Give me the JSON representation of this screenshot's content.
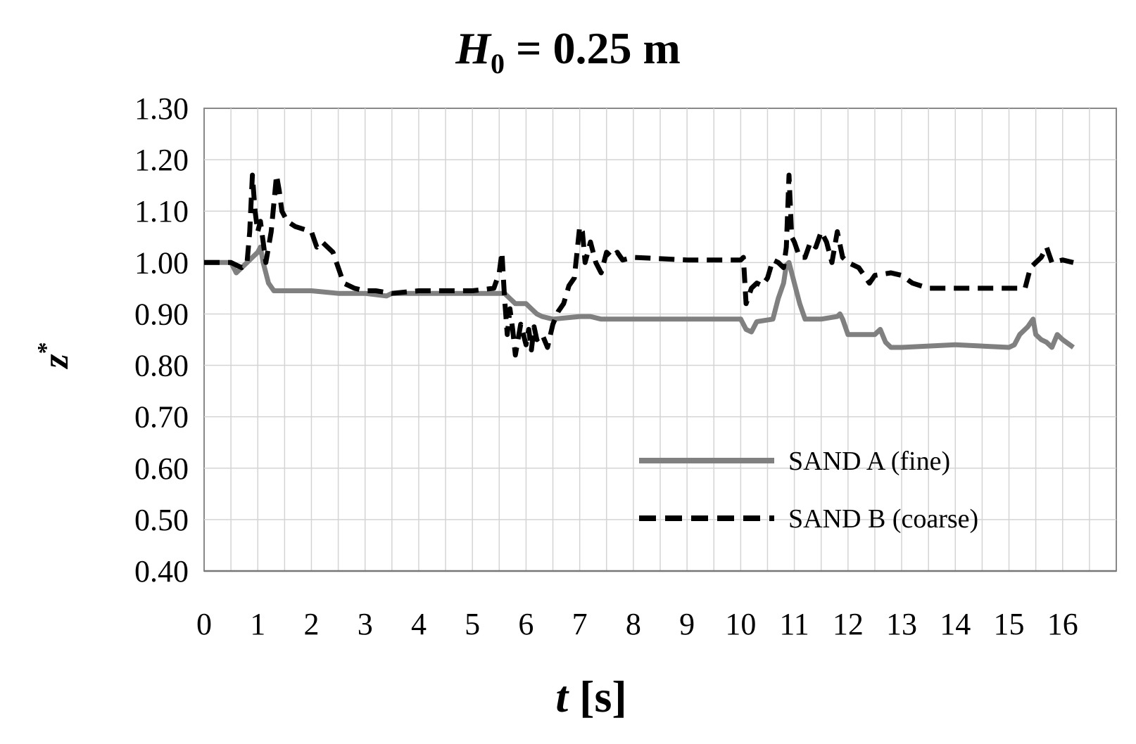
{
  "chart_data": {
    "type": "line",
    "title": {
      "italic": "H",
      "sub": "0",
      "rest": " = 0.25 m"
    },
    "xlabel": {
      "italic": "t",
      "rest": " [s]"
    },
    "ylabel": {
      "italic": "z",
      "sup": "*"
    },
    "xlim": [
      0,
      17
    ],
    "ylim": [
      0.4,
      1.3
    ],
    "x_ticks": [
      0,
      1,
      2,
      3,
      4,
      5,
      6,
      7,
      8,
      9,
      10,
      11,
      12,
      13,
      14,
      15,
      16
    ],
    "x_tick_labels": [
      "0",
      "1",
      "2",
      "3",
      "4",
      "5",
      "6",
      "7",
      "8",
      "9",
      "10",
      "11",
      "12",
      "13",
      "14",
      "15",
      "16"
    ],
    "y_ticks": [
      0.4,
      0.5,
      0.6,
      0.7,
      0.8,
      0.9,
      1.0,
      1.1,
      1.2,
      1.3
    ],
    "y_tick_labels": [
      "0.40",
      "0.50",
      "0.60",
      "0.70",
      "0.80",
      "0.90",
      "1.00",
      "1.10",
      "1.20",
      "1.30"
    ],
    "grid": true,
    "legend": "lower-right",
    "series": [
      {
        "name": "SAND A (fine)",
        "color": "#808080",
        "style": "solid",
        "x": [
          0,
          0.5,
          0.6,
          0.7,
          0.8,
          0.9,
          1.0,
          1.05,
          1.1,
          1.2,
          1.3,
          1.5,
          2.0,
          2.5,
          3.0,
          3.4,
          3.5,
          3.6,
          4.0,
          5.0,
          5.5,
          5.6,
          5.7,
          5.8,
          6.0,
          6.1,
          6.2,
          6.3,
          6.5,
          7.0,
          7.2,
          7.4,
          8.0,
          9.0,
          10.0,
          10.1,
          10.2,
          10.3,
          10.6,
          10.7,
          10.8,
          10.85,
          10.9,
          11.0,
          11.1,
          11.2,
          11.5,
          11.8,
          11.85,
          11.9,
          12.0,
          12.5,
          12.6,
          12.7,
          12.8,
          13.0,
          14.0,
          15.0,
          15.1,
          15.2,
          15.3,
          15.35,
          15.45,
          15.5,
          15.6,
          15.7,
          15.8,
          15.9,
          16.0,
          16.2
        ],
        "y": [
          1.0,
          1.0,
          0.98,
          0.99,
          1.0,
          1.01,
          1.02,
          1.03,
          1.0,
          0.96,
          0.945,
          0.945,
          0.945,
          0.94,
          0.94,
          0.935,
          0.94,
          0.94,
          0.94,
          0.94,
          0.94,
          0.94,
          0.93,
          0.92,
          0.92,
          0.91,
          0.9,
          0.895,
          0.89,
          0.895,
          0.895,
          0.89,
          0.89,
          0.89,
          0.89,
          0.87,
          0.865,
          0.885,
          0.89,
          0.93,
          0.96,
          0.995,
          1.0,
          0.96,
          0.92,
          0.89,
          0.89,
          0.895,
          0.9,
          0.89,
          0.86,
          0.86,
          0.87,
          0.845,
          0.835,
          0.835,
          0.84,
          0.835,
          0.84,
          0.86,
          0.87,
          0.875,
          0.89,
          0.86,
          0.85,
          0.845,
          0.835,
          0.86,
          0.85,
          0.835
        ]
      },
      {
        "name": "SAND B (coarse)",
        "color": "#000000",
        "style": "dashed",
        "x": [
          0,
          0.5,
          0.7,
          0.8,
          0.85,
          0.9,
          0.95,
          1.0,
          1.05,
          1.1,
          1.15,
          1.25,
          1.35,
          1.4,
          1.45,
          1.55,
          1.7,
          2.0,
          2.1,
          2.2,
          2.4,
          2.5,
          2.6,
          2.8,
          3.0,
          3.2,
          3.5,
          4.0,
          5.0,
          5.4,
          5.5,
          5.55,
          5.6,
          5.65,
          5.7,
          5.75,
          5.8,
          5.9,
          6.0,
          6.05,
          6.1,
          6.15,
          6.2,
          6.3,
          6.4,
          6.5,
          6.6,
          6.7,
          6.8,
          6.9,
          7.0,
          7.05,
          7.1,
          7.2,
          7.3,
          7.4,
          7.5,
          7.6,
          7.7,
          7.8,
          8.0,
          9.0,
          10.0,
          10.05,
          10.1,
          10.2,
          10.3,
          10.4,
          10.5,
          10.6,
          10.7,
          10.8,
          10.85,
          10.9,
          10.95,
          11.0,
          11.1,
          11.2,
          11.3,
          11.4,
          11.5,
          11.6,
          11.7,
          11.8,
          11.9,
          12.0,
          12.2,
          12.4,
          12.5,
          12.8,
          13.0,
          13.2,
          13.5,
          14.0,
          15.0,
          15.3,
          15.4,
          15.5,
          15.6,
          15.7,
          15.8,
          16.0,
          16.2
        ],
        "y": [
          1.0,
          1.0,
          0.99,
          1.0,
          1.06,
          1.17,
          1.1,
          1.06,
          1.08,
          1.04,
          1.0,
          1.06,
          1.17,
          1.14,
          1.1,
          1.08,
          1.07,
          1.06,
          1.03,
          1.04,
          1.02,
          0.99,
          0.96,
          0.95,
          0.945,
          0.945,
          0.94,
          0.945,
          0.945,
          0.95,
          0.98,
          1.02,
          0.93,
          0.86,
          0.91,
          0.87,
          0.82,
          0.88,
          0.84,
          0.87,
          0.83,
          0.875,
          0.85,
          0.86,
          0.835,
          0.88,
          0.905,
          0.92,
          0.955,
          0.97,
          1.07,
          1.06,
          1.0,
          1.04,
          1.0,
          0.98,
          1.02,
          1.01,
          1.02,
          1.005,
          1.01,
          1.005,
          1.005,
          1.01,
          0.92,
          0.95,
          0.96,
          0.955,
          0.97,
          1.005,
          1.0,
          0.99,
          1.03,
          1.17,
          1.05,
          1.04,
          1.01,
          1.01,
          1.04,
          1.03,
          1.06,
          1.04,
          1.0,
          1.06,
          1.01,
          1.0,
          0.99,
          0.96,
          0.975,
          0.98,
          0.975,
          0.96,
          0.95,
          0.95,
          0.95,
          0.95,
          0.99,
          1.0,
          1.01,
          1.03,
          1.0,
          1.005,
          1.0
        ]
      }
    ]
  }
}
